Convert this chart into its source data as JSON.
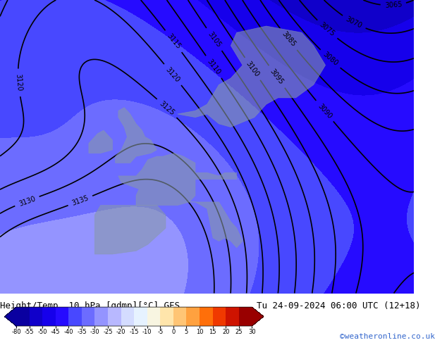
{
  "title_left": "Height/Temp. 10 hPa [gdmp][°C] GFS",
  "title_right": "Tu 24-09-2024 06:00 UTC (12+18)",
  "credit": "©weatheronline.co.uk",
  "colorbar_levels": [
    -80,
    -55,
    -50,
    -45,
    -40,
    -35,
    -30,
    -25,
    -20,
    -15,
    -10,
    -5,
    0,
    5,
    10,
    15,
    20,
    25,
    30
  ],
  "colorbar_colors": [
    "#0a00a0",
    "#1000c8",
    "#1500e8",
    "#2000ff",
    "#4040ff",
    "#6060ff",
    "#8888ff",
    "#aaaaff",
    "#ccccff",
    "#ddeeff",
    "#eef5ff",
    "#fff5cc",
    "#ffdd99",
    "#ffbb66",
    "#ff9933",
    "#ff6600",
    "#ee3300",
    "#cc1100",
    "#990000"
  ],
  "map_bg_color": "#3355cc",
  "land_color": "#5577aa",
  "contour_color": "#000000",
  "contour_linewidth": 1.2,
  "fig_bg_color": "#ffffff",
  "bottom_bar_color": "#ffffff",
  "credit_color": "#3366cc",
  "label_fontsize": 9,
  "title_fontsize": 9,
  "credit_fontsize": 8
}
